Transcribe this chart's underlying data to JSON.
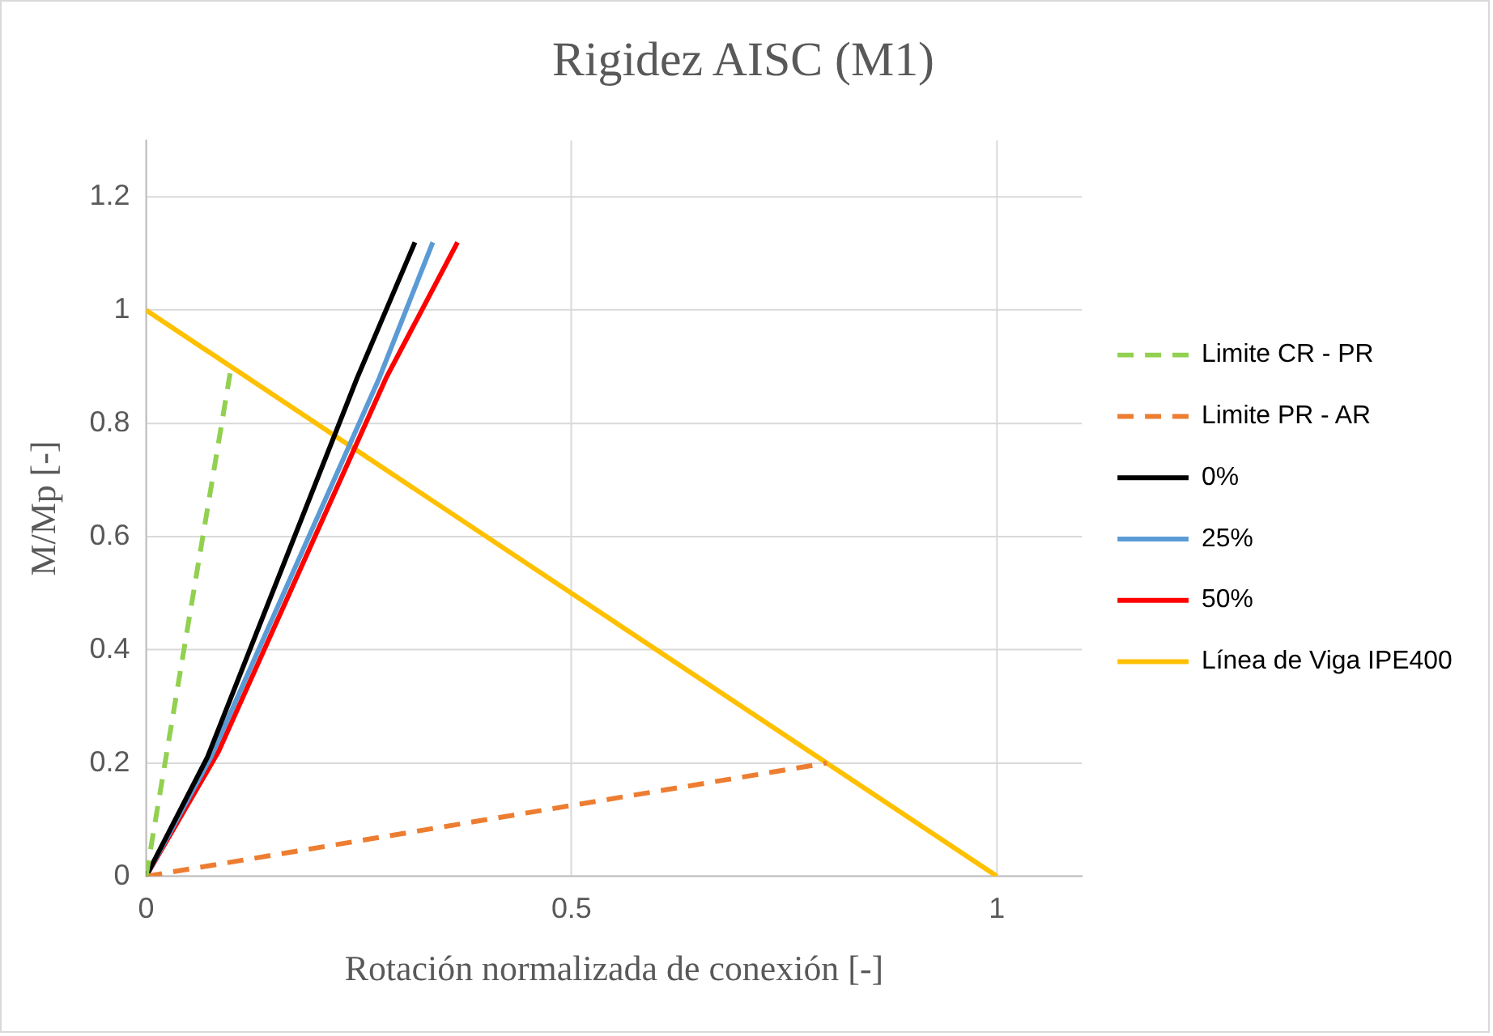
{
  "chart_data": {
    "type": "line",
    "title": "Rigidez AISC (M1)",
    "xlabel": "Rotación normalizada de conexión [-]",
    "ylabel": "M/Mp [-]",
    "xlim": [
      0,
      1.1
    ],
    "xticks": [
      0,
      0.5,
      1
    ],
    "ylim": [
      0,
      1.3
    ],
    "yticks": [
      0,
      0.2,
      0.4,
      0.6,
      0.8,
      1,
      1.2
    ],
    "grid": true,
    "legend": "right",
    "marker": "none",
    "series": [
      {
        "name": "Limite CR - PR",
        "color": "#92d050",
        "line_style": "dashed",
        "x": [
          0,
          0.1
        ],
        "values": [
          0,
          0.9
        ]
      },
      {
        "name": "Limite PR - AR",
        "color": "#ed7d31",
        "line_style": "dashed",
        "x": [
          0,
          0.8
        ],
        "values": [
          0,
          0.2
        ]
      },
      {
        "name": "0%",
        "color": "#000000",
        "line_style": "solid",
        "x": [
          0,
          0.072,
          0.248,
          0.316
        ],
        "values": [
          0,
          0.21,
          0.88,
          1.12
        ]
      },
      {
        "name": "25%",
        "color": "#5b9bd5",
        "line_style": "solid",
        "x": [
          0,
          0.076,
          0.274,
          0.337
        ],
        "values": [
          0,
          0.21,
          0.88,
          1.12
        ]
      },
      {
        "name": "50%",
        "color": "#ff0000",
        "line_style": "solid",
        "x": [
          0,
          0.085,
          0.282,
          0.366
        ],
        "values": [
          0,
          0.22,
          0.88,
          1.12
        ]
      },
      {
        "name": "Línea de Viga IPE400",
        "color": "#ffc000",
        "line_style": "solid",
        "x": [
          0,
          1
        ],
        "values": [
          1,
          0
        ]
      }
    ]
  }
}
